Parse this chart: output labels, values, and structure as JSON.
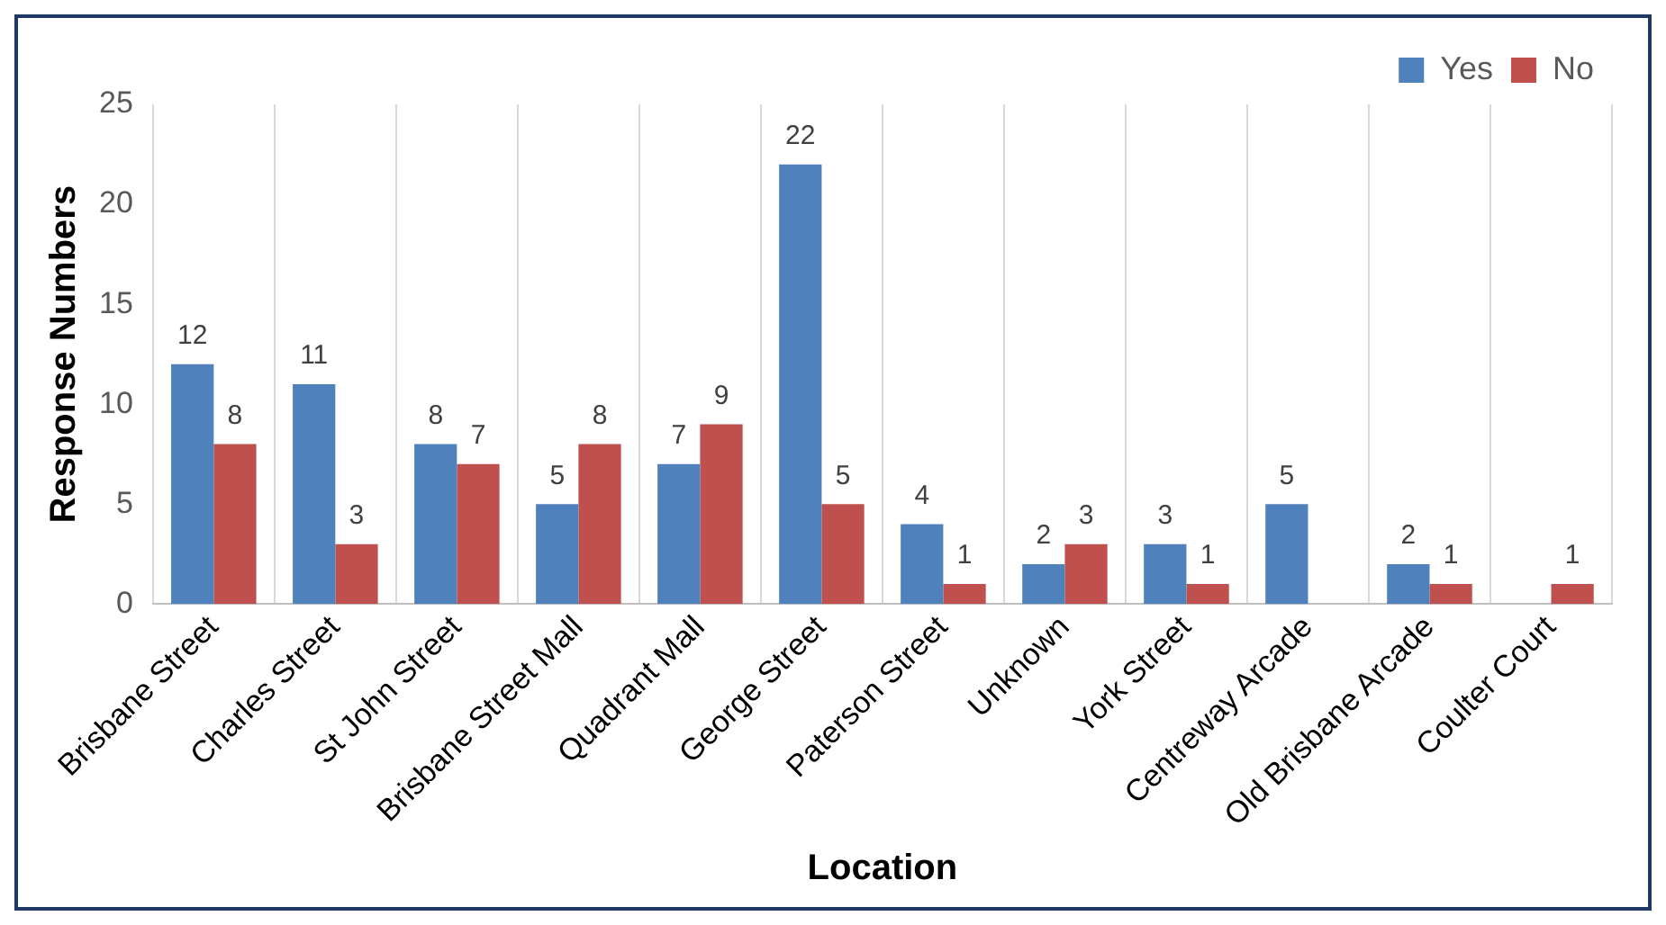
{
  "chart_data": {
    "type": "bar",
    "xlabel": "Location",
    "ylabel": "Response Numbers",
    "categories": [
      "Brisbane Street",
      "Charles Street",
      "St John Street",
      "Brisbane Street Mall",
      "Quadrant Mall",
      "George Street",
      "Paterson Street",
      "Unknown",
      "York Street",
      "Centreway Arcade",
      "Old Brisbane Arcade",
      "Coulter Court"
    ],
    "series": [
      {
        "name": "Yes",
        "color": "#4f81bd",
        "values": [
          12,
          11,
          8,
          5,
          7,
          22,
          4,
          2,
          3,
          5,
          2,
          null
        ],
        "value_labels": [
          "12",
          "11",
          "8",
          "5",
          "7",
          "22",
          "4",
          "2",
          "3",
          "5",
          "2",
          null
        ]
      },
      {
        "name": "No",
        "color": "#c0504d",
        "values": [
          8,
          3,
          7,
          8,
          9,
          5,
          1,
          3,
          1,
          null,
          1,
          1
        ],
        "value_labels": [
          "8",
          "3",
          "7",
          "8",
          "9",
          "5",
          "1",
          "3",
          "1",
          null,
          "1",
          "1"
        ]
      }
    ],
    "ylim": [
      0,
      25
    ],
    "yticks": [
      0,
      5,
      10,
      15,
      20,
      25
    ],
    "grid": "x",
    "legend": "top right"
  }
}
